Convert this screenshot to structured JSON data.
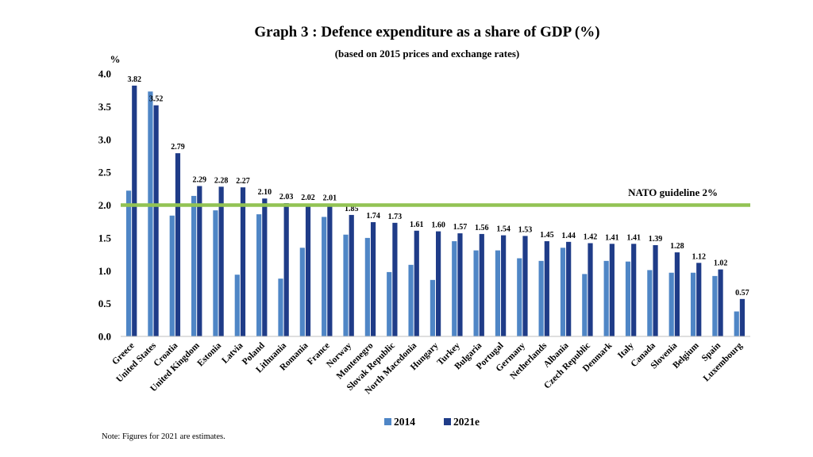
{
  "chart_data": {
    "type": "bar",
    "title": "Graph 3 : Defence expenditure as a share of GDP (%)",
    "subtitle": "(based on 2015 prices and exchange rates)",
    "ylabel": "%",
    "xlabel": "",
    "ylim": [
      0,
      4.0
    ],
    "yticks": [
      "0.0",
      "0.5",
      "1.0",
      "1.5",
      "2.0",
      "2.5",
      "3.0",
      "3.5",
      "4.0"
    ],
    "grid": false,
    "categories": [
      "Greece",
      "United States",
      "Croatia",
      "United Kingdom",
      "Estonia",
      "Latvia",
      "Poland",
      "Lithuania",
      "Romania",
      "France",
      "Norway",
      "Montenegro",
      "Slovak Republic",
      "North Macedonia",
      "Hungary",
      "Turkey",
      "Bulgaria",
      "Portugal",
      "Germany",
      "Netherlands",
      "Albania",
      "Czech Republic",
      "Denmark",
      "Italy",
      "Canada",
      "Slovenia",
      "Belgium",
      "Spain",
      "Luxembourg"
    ],
    "series": [
      {
        "name": "2014",
        "color": "#4f86c6",
        "values": [
          2.22,
          3.73,
          1.84,
          2.14,
          1.92,
          0.94,
          1.86,
          0.88,
          1.35,
          1.82,
          1.55,
          1.5,
          0.98,
          1.09,
          0.86,
          1.45,
          1.31,
          1.31,
          1.19,
          1.15,
          1.35,
          0.95,
          1.15,
          1.14,
          1.01,
          0.97,
          0.97,
          0.92,
          0.38
        ]
      },
      {
        "name": "2021e",
        "color": "#1f3c88",
        "values": [
          3.82,
          3.52,
          2.79,
          2.29,
          2.28,
          2.27,
          2.1,
          2.03,
          2.02,
          2.01,
          1.85,
          1.74,
          1.73,
          1.61,
          1.6,
          1.57,
          1.56,
          1.54,
          1.53,
          1.45,
          1.44,
          1.42,
          1.41,
          1.41,
          1.39,
          1.28,
          1.12,
          1.02,
          0.57
        ]
      }
    ],
    "data_labels_2021e": [
      "3.82",
      "3.52",
      "2.79",
      "2.29",
      "2.28",
      "2.27",
      "2.10",
      "2.03",
      "2.02",
      "2.01",
      "1.85",
      "1.74",
      "1.73",
      "1.61",
      "1.60",
      "1.57",
      "1.56",
      "1.54",
      "1.53",
      "1.45",
      "1.44",
      "1.42",
      "1.41",
      "1.41",
      "1.39",
      "1.28",
      "1.12",
      "1.02",
      "0.57"
    ],
    "reference_line": {
      "value": 2.0,
      "label": "NATO guideline 2%",
      "color": "#92c353"
    },
    "legend": {
      "position": "bottom-center",
      "entries": [
        "2014",
        "2021e"
      ]
    },
    "note": "Note: Figures for 2021 are estimates."
  }
}
